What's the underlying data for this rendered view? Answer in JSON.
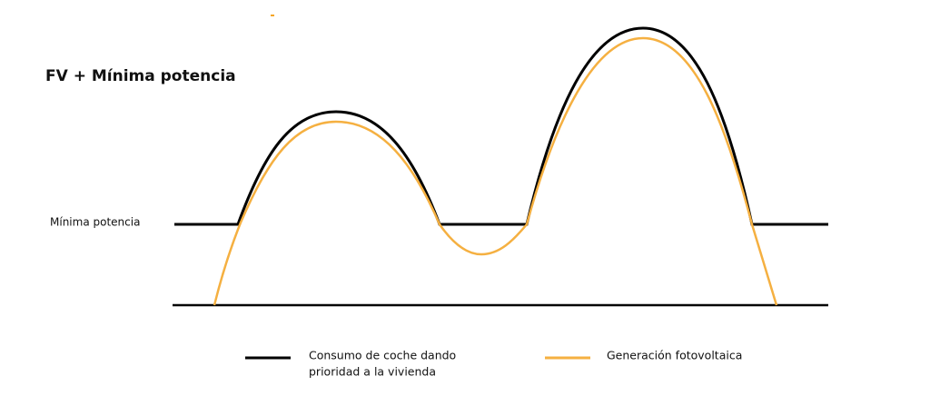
{
  "title": "FV + Mínima potencia",
  "level_label": "Mínima potencia",
  "legend": [
    {
      "label_lines": [
        "Consumo de coche dando",
        "prioridad a la vivienda"
      ]
    },
    {
      "label_lines": [
        "Generación fotovoltaica"
      ]
    }
  ]
}
